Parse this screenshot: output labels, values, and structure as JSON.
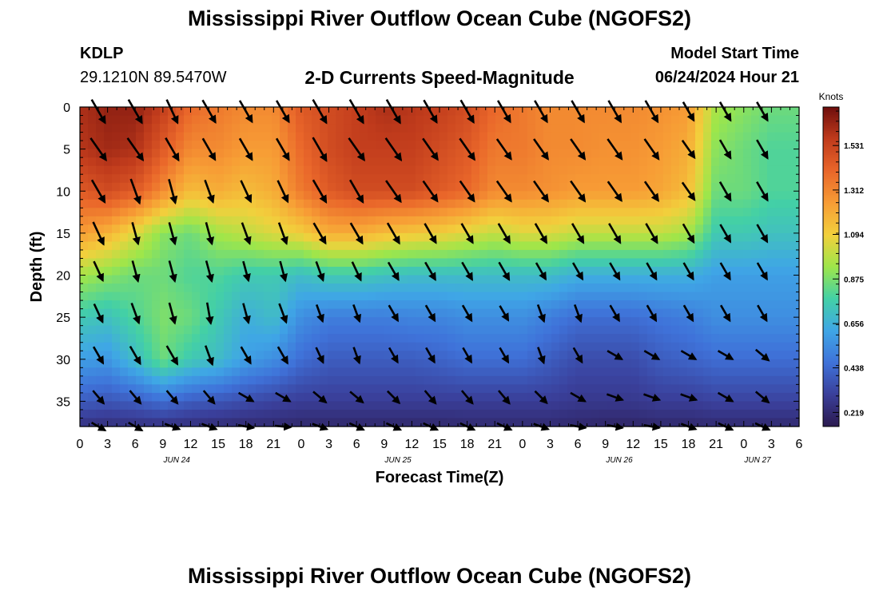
{
  "header": {
    "title": "Mississippi River Outflow Ocean Cube (NGOFS2)",
    "station_id": "KDLP",
    "station_location": "29.1210N  89.5470W",
    "subtitle": "2-D Currents Speed-Magnitude",
    "model_start_label": "Model Start Time",
    "model_start_time": "06/24/2024 Hour 21"
  },
  "footer": {
    "title": "Mississippi River Outflow Ocean Cube (NGOFS2)"
  },
  "chart_data": {
    "type": "heatmap",
    "title": "2-D Currents Speed-Magnitude",
    "xlabel": "Forecast Time(Z)",
    "ylabel": "Depth (ft)",
    "x_ticks": [
      "0",
      "3",
      "6",
      "9",
      "12",
      "15",
      "18",
      "21",
      "0",
      "3",
      "6",
      "9",
      "12",
      "15",
      "18",
      "21",
      "0",
      "3",
      "6",
      "9",
      "12",
      "15",
      "18",
      "21",
      "0",
      "3",
      "6"
    ],
    "x_tick_hours": [
      0,
      3,
      6,
      9,
      12,
      15,
      18,
      21,
      24,
      27,
      30,
      33,
      36,
      39,
      42,
      45,
      48,
      51,
      54,
      57,
      60,
      63,
      66,
      69,
      72,
      75,
      78
    ],
    "date_labels": [
      {
        "label": "JUN 24",
        "hour": 10.5
      },
      {
        "label": "JUN 25",
        "hour": 34.5
      },
      {
        "label": "JUN 26",
        "hour": 58.5
      },
      {
        "label": "JUN 27",
        "hour": 73.5
      }
    ],
    "y_ticks": [
      0,
      5,
      10,
      15,
      20,
      25,
      30,
      35
    ],
    "xlim": [
      0,
      78
    ],
    "ylim": [
      0,
      38
    ],
    "y_inverted": true,
    "colorbar": {
      "label": "Knots",
      "ticks": [
        "1.531",
        "1.312",
        "1.094",
        "0.875",
        "0.656",
        "0.438",
        "0.219"
      ],
      "tick_values": [
        1.531,
        1.312,
        1.094,
        0.875,
        0.656,
        0.438,
        0.219
      ],
      "range": [
        0.15,
        1.72
      ],
      "colors": [
        "#2b1a4f",
        "#3a3f9a",
        "#3f72d9",
        "#3fa6e6",
        "#43d0a6",
        "#9ee64a",
        "#f2d03c",
        "#f79c35",
        "#e9662a",
        "#c03b1c",
        "#6e0e0c"
      ]
    },
    "speed_profiles": {
      "times": [
        0,
        3,
        6,
        9,
        12,
        15,
        18,
        21,
        24,
        27,
        30,
        33,
        36,
        39,
        42,
        45,
        48,
        51,
        54,
        57,
        60,
        63,
        66,
        69,
        72,
        75,
        78
      ],
      "depths": [
        0,
        5,
        10,
        15,
        20,
        25,
        30,
        35,
        38
      ],
      "speed_knots": [
        [
          1.6,
          1.58,
          1.45,
          1.25,
          0.95,
          0.75,
          0.6,
          0.4,
          0.25
        ],
        [
          1.65,
          1.62,
          1.5,
          1.18,
          0.9,
          0.72,
          0.58,
          0.38,
          0.24
        ],
        [
          1.65,
          1.6,
          1.45,
          1.05,
          0.85,
          0.8,
          0.7,
          0.4,
          0.25
        ],
        [
          1.55,
          1.45,
          1.3,
          0.9,
          0.85,
          0.88,
          0.85,
          0.45,
          0.25
        ],
        [
          1.4,
          1.3,
          1.15,
          0.85,
          0.8,
          0.85,
          0.75,
          0.4,
          0.24
        ],
        [
          1.35,
          1.3,
          1.2,
          0.95,
          0.8,
          0.75,
          0.7,
          0.38,
          0.23
        ],
        [
          1.3,
          1.25,
          1.15,
          1.0,
          0.75,
          0.65,
          0.6,
          0.35,
          0.22
        ],
        [
          1.3,
          1.25,
          1.2,
          1.05,
          0.75,
          0.7,
          0.55,
          0.32,
          0.22
        ],
        [
          1.45,
          1.4,
          1.35,
          1.1,
          0.7,
          0.55,
          0.45,
          0.3,
          0.21
        ],
        [
          1.5,
          1.5,
          1.45,
          1.2,
          0.75,
          0.5,
          0.4,
          0.3,
          0.21
        ],
        [
          1.55,
          1.55,
          1.5,
          1.2,
          0.75,
          0.5,
          0.4,
          0.3,
          0.21
        ],
        [
          1.6,
          1.55,
          1.5,
          1.15,
          0.72,
          0.5,
          0.4,
          0.3,
          0.21
        ],
        [
          1.58,
          1.55,
          1.5,
          1.12,
          0.7,
          0.52,
          0.4,
          0.3,
          0.21
        ],
        [
          1.55,
          1.5,
          1.45,
          1.1,
          0.7,
          0.52,
          0.42,
          0.3,
          0.21
        ],
        [
          1.5,
          1.45,
          1.4,
          1.05,
          0.7,
          0.55,
          0.45,
          0.3,
          0.22
        ],
        [
          1.4,
          1.35,
          1.3,
          1.0,
          0.7,
          0.55,
          0.45,
          0.3,
          0.22
        ],
        [
          1.35,
          1.35,
          1.3,
          1.05,
          0.7,
          0.55,
          0.45,
          0.3,
          0.22
        ],
        [
          1.3,
          1.3,
          1.28,
          1.05,
          0.7,
          0.5,
          0.4,
          0.3,
          0.22
        ],
        [
          1.3,
          1.3,
          1.25,
          1.0,
          0.65,
          0.45,
          0.35,
          0.28,
          0.21
        ],
        [
          1.3,
          1.28,
          1.25,
          1.0,
          0.65,
          0.45,
          0.35,
          0.28,
          0.2
        ],
        [
          1.3,
          1.28,
          1.25,
          1.0,
          0.65,
          0.45,
          0.35,
          0.28,
          0.2
        ],
        [
          1.28,
          1.25,
          1.22,
          1.0,
          0.65,
          0.48,
          0.4,
          0.3,
          0.21
        ],
        [
          1.25,
          1.2,
          1.15,
          0.95,
          0.65,
          0.5,
          0.42,
          0.3,
          0.21
        ],
        [
          0.95,
          0.9,
          0.85,
          0.75,
          0.6,
          0.55,
          0.45,
          0.32,
          0.22
        ],
        [
          0.9,
          0.85,
          0.85,
          0.75,
          0.6,
          0.55,
          0.45,
          0.32,
          0.22
        ],
        [
          0.85,
          0.8,
          0.8,
          0.72,
          0.6,
          0.55,
          0.45,
          0.32,
          0.22
        ],
        [
          0.85,
          0.8,
          0.8,
          0.72,
          0.6,
          0.55,
          0.45,
          0.32,
          0.22
        ]
      ]
    },
    "vectors": {
      "times": [
        2,
        6,
        10,
        14,
        18,
        22,
        26,
        30,
        34,
        38,
        42,
        46,
        50,
        54,
        58,
        62,
        66,
        70,
        74
      ],
      "depths": [
        0.5,
        5,
        10,
        15,
        19.5,
        24.5,
        29.5,
        34.5,
        38
      ],
      "direction_deg": [
        [
          150,
          150,
          155,
          150,
          150,
          150,
          150,
          150,
          150,
          150,
          150,
          150,
          150,
          150,
          150,
          150,
          150,
          150,
          150
        ],
        [
          145,
          145,
          150,
          150,
          150,
          150,
          150,
          145,
          145,
          145,
          145,
          145,
          145,
          145,
          145,
          145,
          145,
          150,
          150
        ],
        [
          150,
          160,
          165,
          160,
          155,
          155,
          150,
          150,
          145,
          145,
          145,
          145,
          145,
          145,
          145,
          145,
          145,
          150,
          150
        ],
        [
          155,
          165,
          165,
          165,
          160,
          160,
          150,
          150,
          150,
          150,
          150,
          150,
          150,
          150,
          150,
          150,
          150,
          150,
          150
        ],
        [
          155,
          165,
          165,
          165,
          165,
          165,
          160,
          155,
          150,
          150,
          150,
          150,
          150,
          150,
          150,
          150,
          150,
          150,
          150
        ],
        [
          155,
          160,
          165,
          170,
          165,
          160,
          160,
          160,
          150,
          150,
          150,
          150,
          160,
          160,
          150,
          150,
          150,
          150,
          150
        ],
        [
          150,
          150,
          150,
          160,
          150,
          150,
          155,
          160,
          150,
          150,
          150,
          150,
          160,
          150,
          120,
          120,
          120,
          120,
          130
        ],
        [
          140,
          140,
          140,
          140,
          120,
          120,
          130,
          130,
          135,
          140,
          140,
          140,
          135,
          120,
          110,
          110,
          110,
          120,
          130
        ],
        [
          120,
          120,
          110,
          110,
          100,
          95,
          110,
          115,
          115,
          115,
          115,
          115,
          110,
          100,
          100,
          100,
          110,
          115,
          115
        ]
      ],
      "speed_knots": [
        [
          1.4,
          1.4,
          1.3,
          1.3,
          1.2,
          1.2,
          1.4,
          1.4,
          1.4,
          1.3,
          1.3,
          1.2,
          1.2,
          1.2,
          1.2,
          1.2,
          0.9,
          0.9,
          0.9
        ],
        [
          1.4,
          1.4,
          1.3,
          1.2,
          1.2,
          1.2,
          1.4,
          1.4,
          1.4,
          1.3,
          1.3,
          1.2,
          1.2,
          1.2,
          1.2,
          1.2,
          0.9,
          0.9,
          0.9
        ],
        [
          1.3,
          1.3,
          1.2,
          1.1,
          1.1,
          1.1,
          1.3,
          1.3,
          1.3,
          1.2,
          1.2,
          1.2,
          1.2,
          1.2,
          1.1,
          1.1,
          0.9,
          0.9,
          0.9
        ],
        [
          1.2,
          1.0,
          1.0,
          1.0,
          1.0,
          1.0,
          1.1,
          1.1,
          1.1,
          1.0,
          1.0,
          1.0,
          1.0,
          1.0,
          1.0,
          1.0,
          0.9,
          0.8,
          0.8
        ],
        [
          0.9,
          0.9,
          0.9,
          0.9,
          0.8,
          0.8,
          0.8,
          0.8,
          0.8,
          0.8,
          0.8,
          0.8,
          0.7,
          0.7,
          0.7,
          0.7,
          0.7,
          0.7,
          0.7
        ],
        [
          0.8,
          0.9,
          0.9,
          0.9,
          0.8,
          0.8,
          0.6,
          0.6,
          0.6,
          0.6,
          0.6,
          0.5,
          0.6,
          0.6,
          0.6,
          0.6,
          0.6,
          0.6,
          0.6
        ],
        [
          0.7,
          0.8,
          0.9,
          0.8,
          0.7,
          0.7,
          0.5,
          0.5,
          0.5,
          0.5,
          0.5,
          0.5,
          0.5,
          0.5,
          0.5,
          0.5,
          0.5,
          0.5,
          0.5
        ],
        [
          0.5,
          0.5,
          0.5,
          0.5,
          0.5,
          0.5,
          0.5,
          0.5,
          0.5,
          0.5,
          0.5,
          0.5,
          0.5,
          0.5,
          0.5,
          0.5,
          0.5,
          0.5,
          0.5
        ],
        [
          0.4,
          0.4,
          0.4,
          0.4,
          0.4,
          0.4,
          0.4,
          0.4,
          0.4,
          0.4,
          0.4,
          0.4,
          0.4,
          0.4,
          0.4,
          0.4,
          0.4,
          0.4,
          0.4
        ]
      ]
    }
  }
}
